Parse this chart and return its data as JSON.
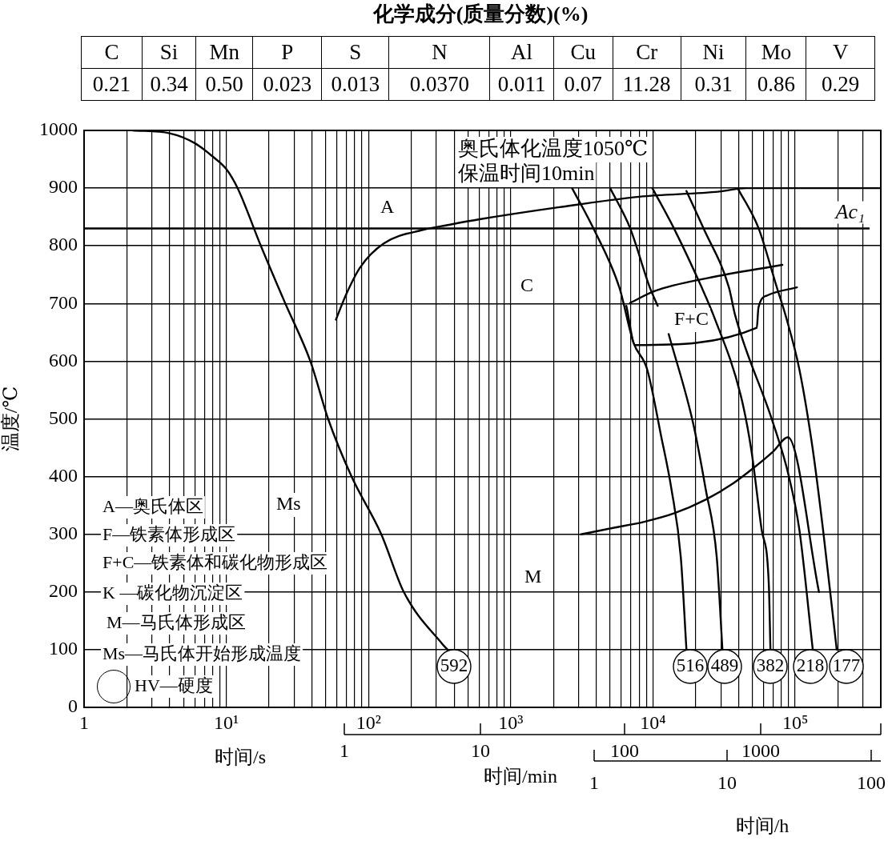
{
  "chart_data": [
    {
      "type": "other",
      "title": "化学成分(质量分数)(%)",
      "categories": [
        "C",
        "Si",
        "Mn",
        "P",
        "S",
        "N",
        "Al",
        "Cu",
        "Cr",
        "Ni",
        "Mo",
        "V"
      ],
      "values": [
        0.21,
        0.34,
        0.5,
        0.023,
        0.013,
        0.037,
        0.011,
        0.07,
        11.28,
        0.31,
        0.86,
        0.29
      ],
      "value_labels": [
        "0.21",
        "0.34",
        "0.50",
        "0.023",
        "0.013",
        "0.0370",
        "0.011",
        "0.07",
        "11.28",
        "0.31",
        "0.86",
        "0.29"
      ]
    },
    {
      "type": "line",
      "xlabel": "时间/s",
      "ylabel": "温度/℃",
      "log": "x",
      "grid": true,
      "legend": false,
      "line_style": "solid",
      "xlim": [
        1,
        400000
      ],
      "ylim": [
        0,
        1000
      ],
      "xticks": [
        {
          "value": 1,
          "label": "1"
        },
        {
          "value": 2,
          "label": null
        },
        {
          "value": 3,
          "label": null
        },
        {
          "value": 4,
          "label": null
        },
        {
          "value": 5,
          "label": null
        },
        {
          "value": 6,
          "label": null
        },
        {
          "value": 7,
          "label": null
        },
        {
          "value": 8,
          "label": null
        },
        {
          "value": 9,
          "label": null
        },
        {
          "value": 10,
          "label": "10¹"
        },
        {
          "value": 20,
          "label": null
        },
        {
          "value": 30,
          "label": null
        },
        {
          "value": 40,
          "label": null
        },
        {
          "value": 50,
          "label": null
        },
        {
          "value": 60,
          "label": null
        },
        {
          "value": 70,
          "label": null
        },
        {
          "value": 80,
          "label": null
        },
        {
          "value": 90,
          "label": null
        },
        {
          "value": 100,
          "label": "10²"
        },
        {
          "value": 200,
          "label": null
        },
        {
          "value": 300,
          "label": null
        },
        {
          "value": 400,
          "label": null
        },
        {
          "value": 500,
          "label": null
        },
        {
          "value": 600,
          "label": null
        },
        {
          "value": 700,
          "label": null
        },
        {
          "value": 800,
          "label": null
        },
        {
          "value": 900,
          "label": null
        },
        {
          "value": 1000,
          "label": "10³"
        },
        {
          "value": 2000,
          "label": null
        },
        {
          "value": 3000,
          "label": null
        },
        {
          "value": 4000,
          "label": null
        },
        {
          "value": 5000,
          "label": null
        },
        {
          "value": 6000,
          "label": null
        },
        {
          "value": 7000,
          "label": null
        },
        {
          "value": 8000,
          "label": null
        },
        {
          "value": 9000,
          "label": null
        },
        {
          "value": 10000,
          "label": "10⁴"
        },
        {
          "value": 20000,
          "label": null
        },
        {
          "value": 30000,
          "label": null
        },
        {
          "value": 40000,
          "label": null
        },
        {
          "value": 50000,
          "label": null
        },
        {
          "value": 60000,
          "label": null
        },
        {
          "value": 70000,
          "label": null
        },
        {
          "value": 80000,
          "label": null
        },
        {
          "value": 90000,
          "label": null
        },
        {
          "value": 100000,
          "label": "10⁵"
        },
        {
          "value": 200000,
          "label": null
        },
        {
          "value": 300000,
          "label": null
        }
      ],
      "yticks": [
        0,
        100,
        200,
        300,
        400,
        500,
        600,
        700,
        800,
        900,
        1000
      ],
      "ref_lines": [
        {
          "axis": "y",
          "value": 830,
          "label": "Ac₁"
        }
      ],
      "series": [
        {
          "color": "#000000",
          "x": [
            2.2,
            4,
            6,
            8,
            10,
            12,
            17.5,
            26,
            39,
            52,
            76,
            123,
            177,
            330,
            360
          ],
          "values": [
            1000,
            995,
            978,
            955,
            933,
            900,
            800,
            700,
            600,
            500,
            400,
            300,
            200,
            110,
            100
          ]
        },
        {
          "color": "#000000",
          "x": [
            59,
            70,
            87,
            128,
            244,
            360,
            604,
            2200,
            8000,
            29300,
            45000,
            400000
          ],
          "values": [
            672,
            717,
            762,
            804,
            828,
            836,
            846,
            867,
            885,
            894,
            900,
            900
          ]
        },
        {
          "color": "#000000",
          "x": [
            2700,
            3800,
            5800,
            7300,
            9100,
            11400,
            13500,
            15700,
            17200
          ],
          "values": [
            900,
            831,
            728,
            632,
            586,
            471,
            378,
            260,
            100
          ]
        },
        {
          "color": "#000000",
          "x": [
            5000,
            6900,
            9500,
            10800
          ],
          "values": [
            900,
            831,
            728,
            696
          ]
        },
        {
          "color": "#000000",
          "x": [
            12900,
            19100,
            23500,
            28100,
            30800
          ],
          "values": [
            647,
            494,
            378,
            260,
            100
          ]
        },
        {
          "color": "#000000",
          "x": [
            9900,
            14000,
            22000,
            26700,
            41500,
            49100,
            58100,
            65300,
            67000
          ],
          "values": [
            900,
            831,
            728,
            679,
            540,
            447,
            308,
            212,
            100
          ]
        },
        {
          "color": "#000000",
          "x": [
            17200,
            22600,
            34200,
            37900,
            69700,
            90200,
            107000,
            133000
          ],
          "values": [
            895,
            831,
            728,
            679,
            494,
            401,
            308,
            100
          ]
        },
        {
          "color": "#000000",
          "x": [
            39400,
            55200,
            74300,
            85700,
            107000,
            133000,
            157000,
            196000
          ],
          "values": [
            900,
            831,
            728,
            679,
            586,
            447,
            308,
            100
          ]
        },
        {
          "color": "#000000",
          "x": [
            3120,
            5240,
            8790,
            14000,
            23500,
            36500,
            51000,
            69700,
            89000,
            147000
          ],
          "values": [
            300,
            311,
            322,
            336,
            360,
            388,
            415,
            443,
            468,
            200
          ]
        },
        {
          "color": "#000000",
          "x": [
            6900,
            10400,
            24100,
            81300
          ],
          "values": [
            701,
            722,
            744,
            767
          ]
        },
        {
          "color": "#000000",
          "x": [
            6500,
            7500,
            53700,
            55200,
            63600,
            103000
          ],
          "values": [
            696,
            628,
            658,
            693,
            714,
            728
          ]
        }
      ],
      "annotations": [
        "奥氏体化温度1050℃",
        "保温时间10min",
        "A—奥氏体区",
        "F—铁素体形成区",
        "F+C—铁素体和碳化物形成区",
        "K —碳化物沉淀区",
        "M—马氏体形成区",
        "Ms—马氏体开始形成温度",
        "HV—硬度",
        "A",
        "C",
        "F+C",
        "M",
        "Ms",
        "1",
        "10",
        "100",
        "1000",
        "时间/min",
        "1",
        "10",
        "100",
        "时间/h",
        "592",
        "516",
        "489",
        "382",
        "218",
        "177"
      ]
    }
  ]
}
